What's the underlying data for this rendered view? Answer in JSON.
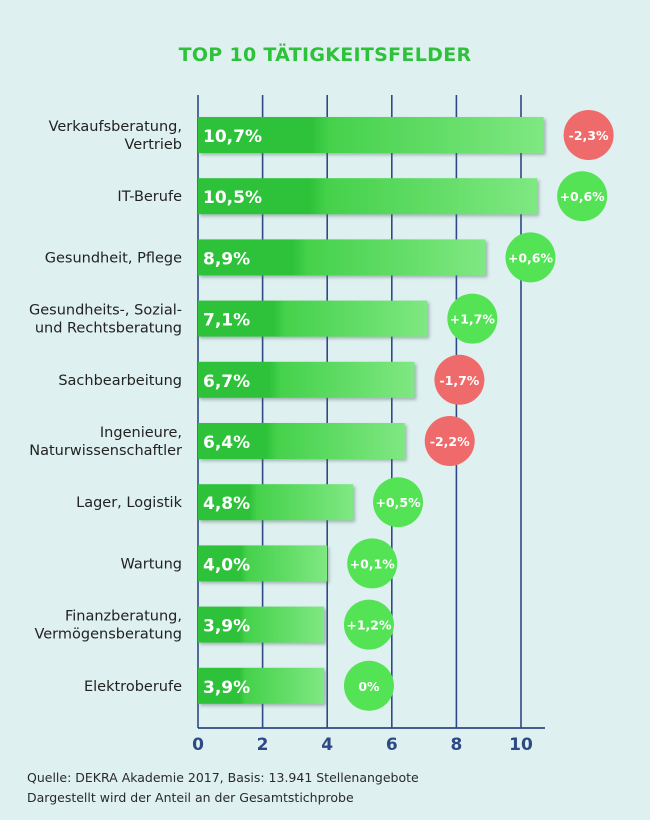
{
  "chart_data": {
    "type": "bar",
    "title": "TOP 10 TÄTIGKEITSFELDER",
    "categories": [
      [
        "Verkaufsberatung,",
        "Vertrieb"
      ],
      [
        "IT-Berufe"
      ],
      [
        "Gesundheit, Pflege"
      ],
      [
        "Gesundheits-, Sozial-",
        "und Rechtsberatung"
      ],
      [
        "Sachbearbeitung"
      ],
      [
        "Ingenieure,",
        "Naturwissenschaftler"
      ],
      [
        "Lager, Logistik"
      ],
      [
        "Wartung"
      ],
      [
        "Finanzberatung,",
        "Vermögensberatung"
      ],
      [
        "Elektroberufe"
      ]
    ],
    "values": [
      10.7,
      10.5,
      8.9,
      7.1,
      6.7,
      6.4,
      4.8,
      4.0,
      3.9,
      3.9
    ],
    "value_labels": [
      "10,7%",
      "10,5%",
      "8,9%",
      "7,1%",
      "6,7%",
      "6,4%",
      "4,8%",
      "4,0%",
      "3,9%",
      "3,9%"
    ],
    "changes": [
      -2.3,
      0.6,
      0.6,
      1.7,
      -1.7,
      -2.2,
      0.5,
      0.1,
      1.2,
      0
    ],
    "change_labels": [
      "-2,3%",
      "+0,6%",
      "+0,6%",
      "+1,7%",
      "-1,7%",
      "-2,2%",
      "+0,5%",
      "+0,1%",
      "+1,2%",
      "0%"
    ],
    "xlim": [
      0,
      10.7
    ],
    "xticks": [
      0,
      2,
      4,
      6,
      8,
      10
    ],
    "grid": true,
    "xlabel": "",
    "ylabel": ""
  },
  "colors": {
    "bar_dark": "#2ec23a",
    "bar_light": "#7fe882",
    "positive": "#55e356",
    "negative": "#ef6a6a",
    "grid": "#2d4a86",
    "label": "#222222"
  },
  "footer": {
    "source": "Quelle: DEKRA Akademie 2017, Basis: 13.941 Stellenangebote",
    "note": "Dargestellt wird der Anteil an der Gesamtstichprobe"
  }
}
